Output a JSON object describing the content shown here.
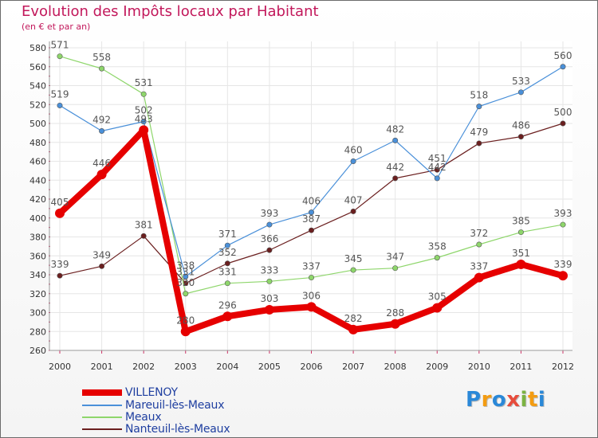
{
  "title": "Evolution des Impôts locaux par Habitant",
  "subtitle": "(en € et par an)",
  "logo": {
    "text": [
      "P",
      "r",
      "o",
      "x",
      "i",
      "t",
      "i"
    ],
    "colors": [
      "#2a88d8",
      "#f39c12",
      "#2a88d8",
      "#e74c3c",
      "#7cb342",
      "#f39c12",
      "#2a88d8"
    ]
  },
  "chart_data": {
    "type": "line",
    "title": "Evolution des Impôts locaux par Habitant",
    "ylabel": "(en € et par an)",
    "xlabel": "",
    "ylim": [
      260,
      580
    ],
    "yticks": [
      260,
      280,
      300,
      320,
      340,
      360,
      380,
      400,
      420,
      440,
      460,
      480,
      500,
      520,
      540,
      560,
      580
    ],
    "categories": [
      "2000",
      "2001",
      "2002",
      "2003",
      "2004",
      "2005",
      "2006",
      "2007",
      "2008",
      "2009",
      "2010",
      "2011",
      "2012"
    ],
    "grid": true,
    "legend": "bottom-left",
    "series": [
      {
        "name": "VILLENOY",
        "color": "#e60000",
        "values": [
          405,
          446,
          493,
          280,
          296,
          303,
          306,
          282,
          288,
          305,
          337,
          351,
          339
        ]
      },
      {
        "name": "Mareuil-lès-Meaux",
        "color": "#4a90d9",
        "values": [
          519,
          492,
          502,
          338,
          371,
          393,
          406,
          460,
          482,
          442,
          518,
          533,
          560
        ]
      },
      {
        "name": "Meaux",
        "color": "#8ed66b",
        "values": [
          571,
          558,
          531,
          320,
          331,
          333,
          337,
          345,
          347,
          358,
          372,
          385,
          393
        ]
      },
      {
        "name": "Nanteuil-lès-Meaux",
        "color": "#6b1f1f",
        "values": [
          339,
          349,
          381,
          331,
          352,
          366,
          387,
          407,
          442,
          451,
          479,
          486,
          500
        ]
      }
    ]
  }
}
